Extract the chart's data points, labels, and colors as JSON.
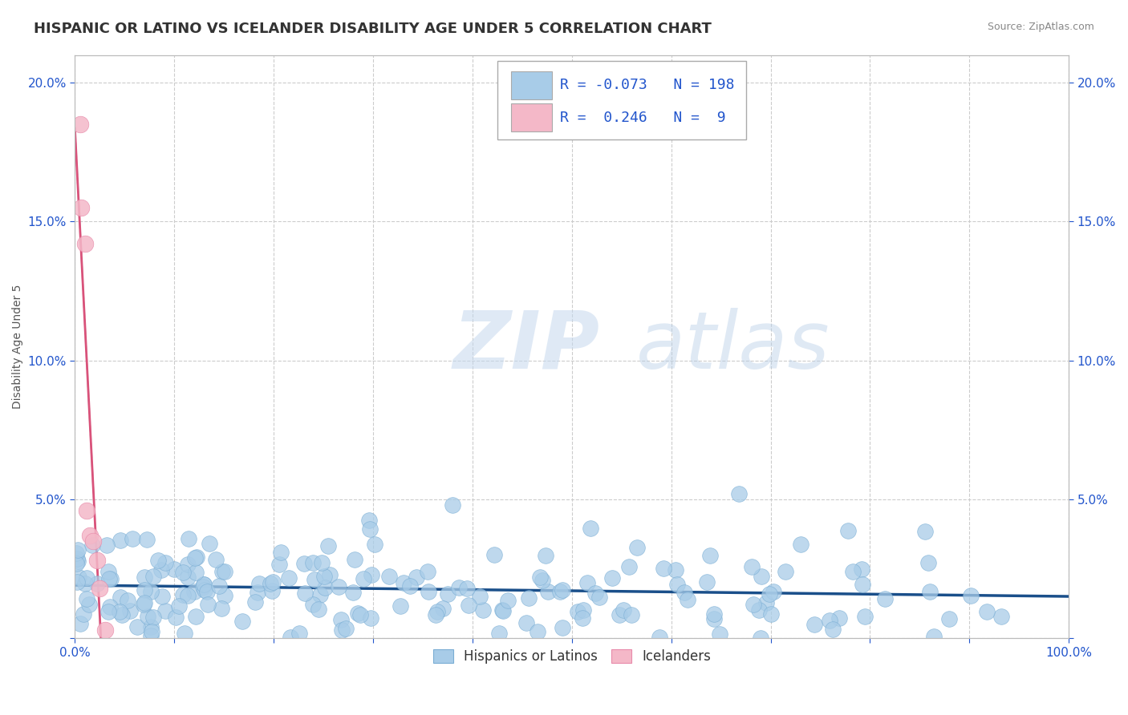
{
  "title": "HISPANIC OR LATINO VS ICELANDER DISABILITY AGE UNDER 5 CORRELATION CHART",
  "source": "Source: ZipAtlas.com",
  "ylabel": "Disability Age Under 5",
  "xlim": [
    0,
    1.0
  ],
  "ylim": [
    0,
    0.21
  ],
  "xticks": [
    0.0,
    0.1,
    0.2,
    0.3,
    0.4,
    0.5,
    0.6,
    0.7,
    0.8,
    0.9,
    1.0
  ],
  "xtick_labels": [
    "0.0%",
    "",
    "",
    "",
    "",
    "",
    "",
    "",
    "",
    "",
    "100.0%"
  ],
  "ytick_labels": [
    "",
    "5.0%",
    "10.0%",
    "15.0%",
    "20.0%"
  ],
  "yticks": [
    0.0,
    0.05,
    0.1,
    0.15,
    0.2
  ],
  "blue_R": -0.073,
  "blue_N": 198,
  "pink_R": 0.246,
  "pink_N": 9,
  "blue_color": "#a8cce8",
  "blue_edge_color": "#7aadd4",
  "blue_line_color": "#1a4f8a",
  "pink_color": "#f4b8c8",
  "pink_edge_color": "#e88aaa",
  "pink_line_color": "#d9527a",
  "pink_dash_color": "#ccbbcc",
  "watermark_zip": "ZIP",
  "watermark_atlas": "atlas",
  "title_fontsize": 13,
  "axis_label_fontsize": 10,
  "tick_fontsize": 11,
  "legend_fontsize": 13,
  "background_color": "#ffffff",
  "grid_color": "#cccccc"
}
